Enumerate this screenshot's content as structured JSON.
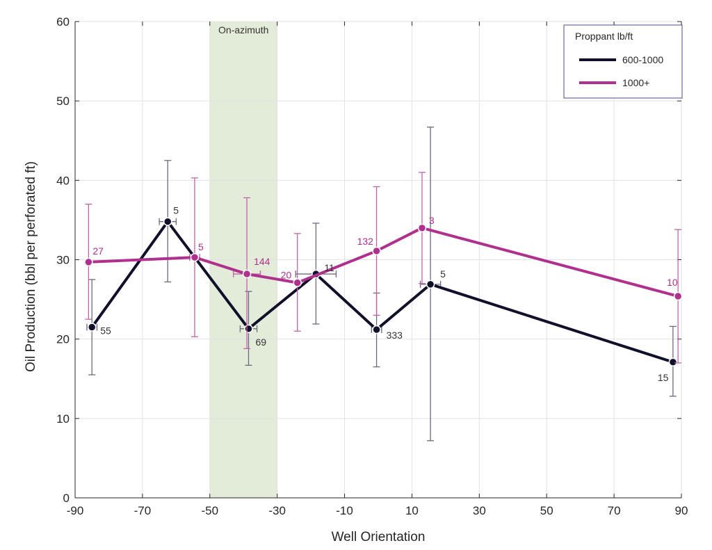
{
  "chart_data": {
    "type": "line",
    "xlabel": "Well Orientation",
    "ylabel": "Oil Production (bbl per perforated ft)",
    "xlim": [
      -90,
      90
    ],
    "ylim": [
      0,
      60
    ],
    "xticks": [
      -90,
      -70,
      -50,
      -30,
      -10,
      10,
      30,
      50,
      70,
      90
    ],
    "yticks": [
      0,
      10,
      20,
      30,
      40,
      50,
      60
    ],
    "grid": true,
    "legend_title": "Proppant lb/ft",
    "legend_position": "top-right",
    "shaded_region": {
      "x_start": -50,
      "x_end": -30,
      "label": "On-azimuth",
      "color": "#e3ecd9"
    },
    "series": [
      {
        "name": "600-1000",
        "color": "#10102a",
        "points": [
          {
            "x": -85,
            "y": 21.5,
            "err_low": 15.5,
            "err_high": 27.5,
            "xerr": 1.5,
            "label": "55"
          },
          {
            "x": -62.5,
            "y": 34.8,
            "err_low": 27.2,
            "err_high": 42.5,
            "xerr": 2.5,
            "label": "5"
          },
          {
            "x": -38.5,
            "y": 21.3,
            "err_low": 16.7,
            "err_high": 26.0,
            "xerr": 2.5,
            "label": "69"
          },
          {
            "x": -18.5,
            "y": 28.2,
            "err_low": 21.9,
            "err_high": 34.6,
            "xerr": 6.0,
            "label": "11"
          },
          {
            "x": -0.5,
            "y": 21.2,
            "err_low": 16.5,
            "err_high": 25.8,
            "xerr": 1.5,
            "label": "333"
          },
          {
            "x": 15.5,
            "y": 26.9,
            "err_low": 7.2,
            "err_high": 46.7,
            "xerr": 3.0,
            "label": "5"
          },
          {
            "x": 87.5,
            "y": 17.1,
            "err_low": 12.8,
            "err_high": 21.6,
            "xerr": 0,
            "label": "15"
          }
        ]
      },
      {
        "name": "1000+",
        "color": "#b0308e",
        "points": [
          {
            "x": -86,
            "y": 29.7,
            "err_low": 22.5,
            "err_high": 37.0,
            "xerr": 0,
            "label": "27"
          },
          {
            "x": -54.5,
            "y": 30.3,
            "err_low": 20.3,
            "err_high": 40.3,
            "xerr": 1.5,
            "label": "5"
          },
          {
            "x": -39,
            "y": 28.2,
            "err_low": 18.8,
            "err_high": 37.8,
            "xerr": 4.0,
            "label": "144"
          },
          {
            "x": -24,
            "y": 27.1,
            "err_low": 21.0,
            "err_high": 33.3,
            "xerr": 0,
            "label": "20"
          },
          {
            "x": -0.5,
            "y": 31.1,
            "err_low": 23.0,
            "err_high": 39.2,
            "xerr": 0,
            "label": "132"
          },
          {
            "x": 13,
            "y": 34.0,
            "err_low": 27.0,
            "err_high": 41.0,
            "xerr": 0,
            "label": "3"
          },
          {
            "x": 89,
            "y": 25.4,
            "err_low": 17.0,
            "err_high": 33.8,
            "xerr": 0,
            "label": "10"
          }
        ]
      }
    ]
  }
}
